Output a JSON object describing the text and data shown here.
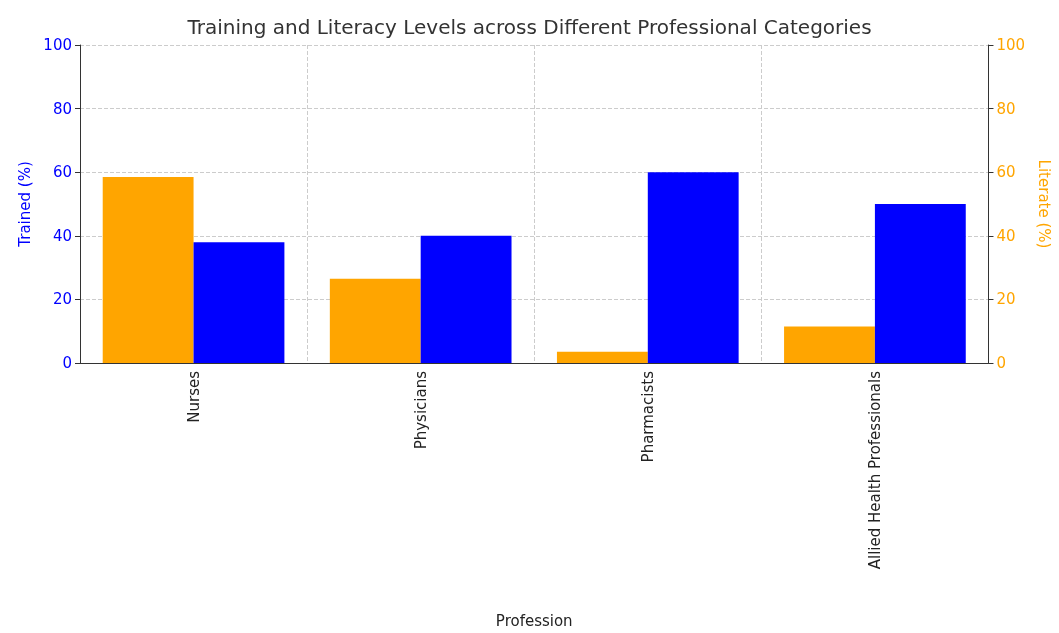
{
  "chart_data": {
    "type": "bar",
    "title": "Training and Literacy Levels across Different Professional Categories",
    "xlabel": "Profession",
    "ylabel": "Trained (%)",
    "y2label": "Literate (%)",
    "categories": [
      "Nurses",
      "Physicians",
      "Pharmacists",
      "Allied Health Professionals"
    ],
    "series": [
      {
        "color": "#ffa500",
        "axis": "y2",
        "values": [
          58.5,
          26.5,
          3.5,
          11.5
        ]
      },
      {
        "color": "#0000ff",
        "axis": "y",
        "values": [
          38,
          40,
          60,
          50
        ]
      }
    ],
    "ylim": [
      0,
      100
    ],
    "yticks": [
      0,
      20,
      40,
      60,
      80,
      100
    ],
    "y2lim": [
      0,
      100
    ],
    "y2ticks": [
      0,
      20,
      40,
      60,
      80,
      100
    ],
    "grid": true
  }
}
